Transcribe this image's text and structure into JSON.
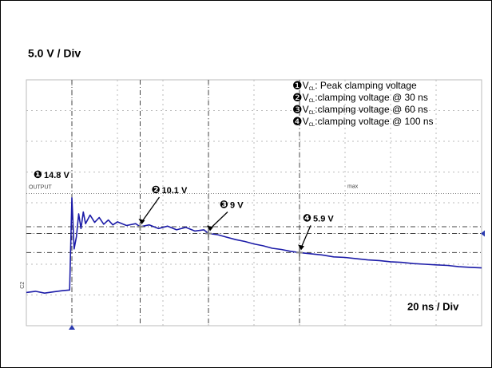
{
  "chart_data": {
    "type": "line",
    "title": "5.0 V / Div",
    "x_scale_label": "20 ns / Div",
    "x": [
      -20,
      -16,
      -12,
      -8,
      -4,
      -1,
      0,
      1,
      2,
      3,
      4,
      5,
      6,
      8,
      10,
      12,
      14,
      16,
      18,
      20,
      24,
      28,
      30,
      34,
      38,
      42,
      46,
      50,
      54,
      58,
      60,
      64,
      68,
      72,
      76,
      80,
      84,
      88,
      92,
      96,
      100,
      105,
      110,
      115,
      120,
      125,
      130,
      135,
      140,
      145,
      150,
      155,
      160,
      165,
      170,
      175,
      180
    ],
    "series": [
      {
        "name": "OUTPUT",
        "color": "#1c1ca8",
        "values": [
          -0.6,
          -0.4,
          -0.7,
          -0.5,
          -0.3,
          -0.2,
          14.8,
          6.5,
          8.5,
          12.2,
          9.8,
          12.5,
          10.6,
          12.0,
          10.8,
          11.6,
          10.5,
          11.2,
          10.4,
          10.9,
          10.3,
          10.6,
          10.1,
          10.4,
          9.8,
          10.2,
          9.6,
          10.0,
          9.4,
          9.6,
          9.0,
          8.8,
          8.4,
          8.0,
          7.7,
          7.3,
          7.0,
          6.6,
          6.4,
          6.1,
          5.9,
          5.7,
          5.5,
          5.2,
          5.1,
          4.9,
          4.7,
          4.6,
          4.4,
          4.3,
          4.1,
          4.0,
          3.9,
          3.8,
          3.6,
          3.5,
          3.4
        ]
      }
    ],
    "xlim": [
      -20,
      180
    ],
    "ylim": [
      -6,
      34
    ],
    "xticks": [
      -20,
      0,
      20,
      40,
      60,
      80,
      100,
      120,
      140,
      160,
      180
    ],
    "yticks": [
      -6,
      -1,
      4,
      9,
      14,
      19,
      24,
      29,
      34
    ],
    "grid": true,
    "max_label": "max",
    "max_level": 15.5,
    "channel_label": "C2",
    "annotations": [
      {
        "marker": "❶",
        "label": "14.8 V",
        "x": 0,
        "y": 14.8
      },
      {
        "marker": "❷",
        "label": "10.1 V",
        "x": 30,
        "y": 10.1
      },
      {
        "marker": "❸",
        "label": "9 V",
        "x": 60,
        "y": 9
      },
      {
        "marker": "❹",
        "label": "5.9  V",
        "x": 100,
        "y": 5.9
      }
    ],
    "legend": [
      {
        "marker": "❶",
        "symbol": "V",
        "sub": "CL",
        "text": ": Peak clamping voltage"
      },
      {
        "marker": "❷",
        "symbol": "V",
        "sub": "CL",
        "text": ":clamping voltage @ 30 ns"
      },
      {
        "marker": "❸",
        "symbol": "V",
        "sub": "CL",
        "text": ":clamping voltage @ 60 ns"
      },
      {
        "marker": "❹",
        "symbol": "V",
        "sub": "CL",
        "text": ":clamping voltage @ 100 ns"
      }
    ]
  }
}
